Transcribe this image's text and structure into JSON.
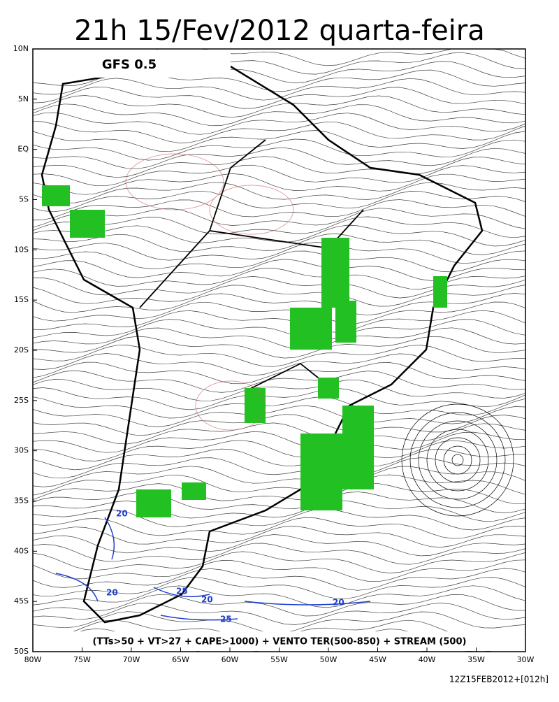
{
  "header": {
    "title": "21h 15/Fev/2012 quarta-feira"
  },
  "panel_label": "GFS 0.5",
  "lat_labels": [
    "10N",
    "5N",
    "EQ",
    "5S",
    "10S",
    "15S",
    "20S",
    "25S",
    "30S",
    "35S",
    "40S",
    "45S",
    "50S"
  ],
  "lon_labels": [
    "80W",
    "75W",
    "70W",
    "65W",
    "60W",
    "55W",
    "50W",
    "45W",
    "40W",
    "35W",
    "30W"
  ],
  "contour_labels": [
    "20",
    "20",
    "25",
    "20",
    "25",
    "20"
  ],
  "caption": "(TTs>50 + VT>27 + CAPE>1000) + VENTO TER(500-850) + STREAM (500)",
  "timestamp": "12Z15FEB2012+[012h]"
}
